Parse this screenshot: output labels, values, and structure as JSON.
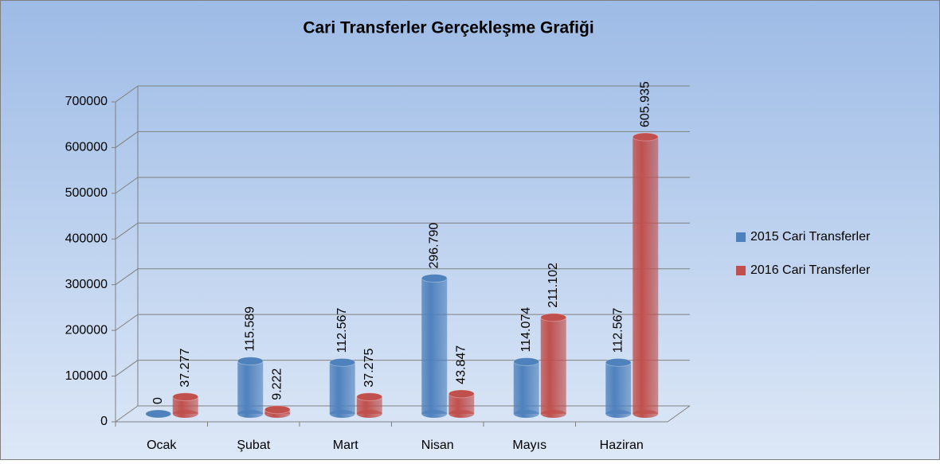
{
  "chart_data": {
    "type": "bar3d",
    "title": "Cari Transferler Gerçekleşme Grafiği",
    "categories": [
      "Ocak",
      "Şubat",
      "Mart",
      "Nisan",
      "Mayıs",
      "Haziran"
    ],
    "series": [
      {
        "name": "2015 Cari Transferler",
        "color": "#4f81bd",
        "values": [
          0,
          115589,
          112567,
          296790,
          114074,
          112567
        ],
        "value_labels": [
          "0",
          "115.589",
          "112.567",
          "296.790",
          "114.074",
          "112.567"
        ]
      },
      {
        "name": "2016 Cari Transferler",
        "color": "#c0504d",
        "values": [
          37277,
          9222,
          37275,
          43847,
          211102,
          605935
        ],
        "value_labels": [
          "37.277",
          "9.222",
          "37.275",
          "43.847",
          "211.102",
          "605.935"
        ]
      }
    ],
    "ylim": [
      0,
      700000
    ],
    "yticks": [
      0,
      100000,
      200000,
      300000,
      400000,
      500000,
      600000,
      700000
    ],
    "grid": true,
    "legend": "right"
  }
}
